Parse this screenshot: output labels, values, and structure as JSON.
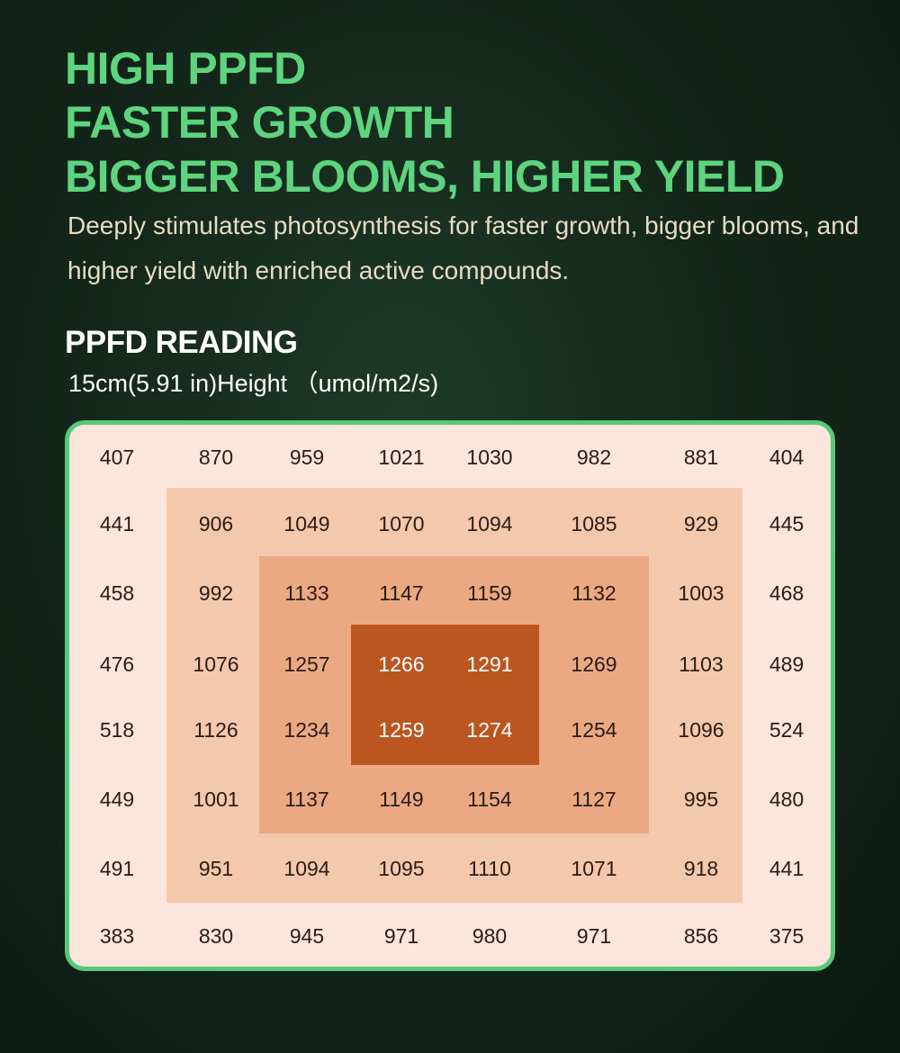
{
  "headline": {
    "line1": "HIGH PPFD",
    "line2": "FASTER GROWTH",
    "line3": "BIGGER BLOOMS, HIGHER YIELD"
  },
  "subtitle": "Deeply stimulates photosynthesis for faster growth, bigger blooms, and higher yield with enriched active compounds.",
  "section": {
    "title": "PPFD READING",
    "subtitle": "15cm(5.91 in)Height （umol/m2/s)"
  },
  "colors": {
    "headline": "#5ed47f",
    "panel_border": "#56c97a",
    "zone_outer": "#fce6dc",
    "zone_1": "#f4c8ad",
    "zone_2": "#eba983",
    "zone_3": "#bc5621"
  },
  "grid": [
    [
      407,
      870,
      959,
      1021,
      1030,
      982,
      881,
      404
    ],
    [
      441,
      906,
      1049,
      1070,
      1094,
      1085,
      929,
      445
    ],
    [
      458,
      992,
      1133,
      1147,
      1159,
      1132,
      1003,
      468
    ],
    [
      476,
      1076,
      1257,
      1266,
      1291,
      1269,
      1103,
      489
    ],
    [
      518,
      1126,
      1234,
      1259,
      1274,
      1254,
      1096,
      524
    ],
    [
      449,
      1001,
      1137,
      1149,
      1154,
      1127,
      995,
      480
    ],
    [
      491,
      951,
      1094,
      1095,
      1110,
      1071,
      918,
      441
    ],
    [
      383,
      830,
      945,
      971,
      980,
      971,
      856,
      375
    ]
  ]
}
